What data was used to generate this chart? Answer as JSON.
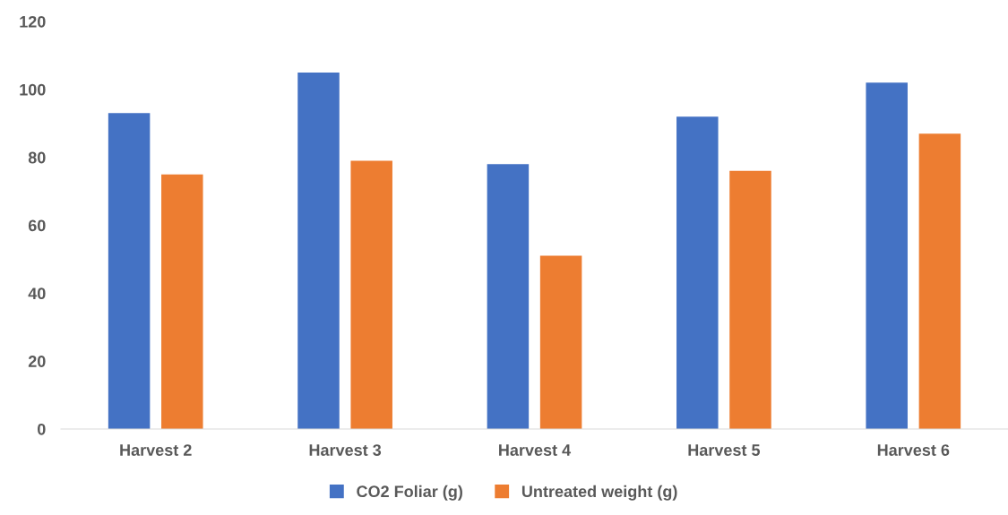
{
  "chart_data": {
    "type": "bar",
    "categories": [
      "Harvest 2",
      "Harvest 3",
      "Harvest 4",
      "Harvest 5",
      "Harvest 6"
    ],
    "series": [
      {
        "name": "CO2 Foliar (g)",
        "color": "#4472c4",
        "values": [
          93,
          105,
          78,
          92,
          102
        ]
      },
      {
        "name": "Untreated weight (g)",
        "color": "#ed7d31",
        "values": [
          75,
          79,
          51,
          76,
          87
        ]
      }
    ],
    "ylim": [
      0,
      120
    ],
    "yticks": [
      0,
      20,
      40,
      60,
      80,
      100,
      120
    ],
    "grid": false,
    "legend": "bottom"
  }
}
